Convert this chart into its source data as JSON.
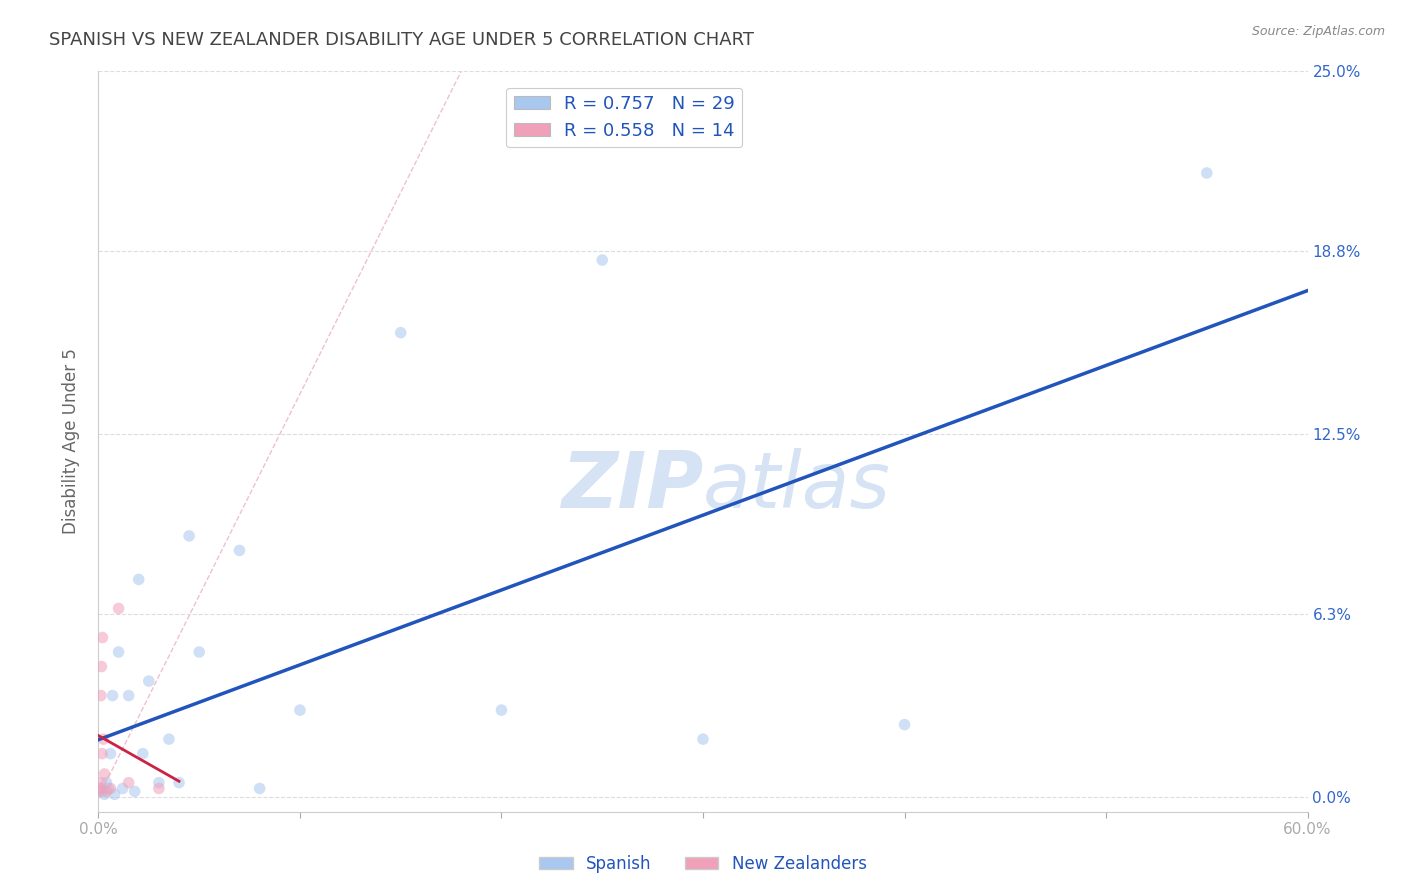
{
  "title": "SPANISH VS NEW ZEALANDER DISABILITY AGE UNDER 5 CORRELATION CHART",
  "source": "Source: ZipAtlas.com",
  "ylabel": "Disability Age Under 5",
  "ylabel_tick_vals": [
    0.0,
    6.3,
    12.5,
    18.8,
    25.0
  ],
  "xlim": [
    0.0,
    60.0
  ],
  "ylim": [
    -0.5,
    25.0
  ],
  "spanish_x": [
    0.1,
    0.2,
    0.3,
    0.4,
    0.5,
    0.6,
    0.7,
    0.8,
    1.0,
    1.2,
    1.5,
    1.8,
    2.0,
    2.2,
    2.5,
    3.0,
    3.5,
    4.0,
    4.5,
    5.0,
    7.0,
    8.0,
    10.0,
    15.0,
    20.0,
    25.0,
    30.0,
    40.0,
    55.0
  ],
  "spanish_y": [
    0.3,
    0.2,
    0.1,
    0.5,
    0.3,
    1.5,
    3.5,
    0.1,
    5.0,
    0.3,
    3.5,
    0.2,
    7.5,
    1.5,
    4.0,
    0.5,
    2.0,
    0.5,
    9.0,
    5.0,
    8.5,
    0.3,
    3.0,
    16.0,
    3.0,
    18.5,
    2.0,
    2.5,
    21.5
  ],
  "nz_x": [
    0.05,
    0.08,
    0.1,
    0.12,
    0.15,
    0.18,
    0.2,
    0.25,
    0.3,
    0.4,
    0.6,
    1.0,
    1.5,
    3.0
  ],
  "nz_y": [
    0.2,
    0.3,
    0.5,
    3.5,
    4.5,
    1.5,
    5.5,
    2.0,
    0.8,
    0.2,
    0.3,
    6.5,
    0.5,
    0.3
  ],
  "spanish_color": "#A8C8F0",
  "nz_color": "#F0A0B8",
  "spanish_line_color": "#2255BB",
  "nz_line_color": "#CC2244",
  "ref_line_color": "#F0B8C8",
  "background_color": "#FFFFFF",
  "title_color": "#444444",
  "tick_color": "#3366CC",
  "watermark_color": "#C5D8F0",
  "legend_spanish_r": "0.757",
  "legend_spanish_n": "29",
  "legend_nz_r": "0.558",
  "legend_nz_n": "14",
  "grid_color": "#DDDDDD",
  "marker_size": 70,
  "marker_alpha": 0.55
}
